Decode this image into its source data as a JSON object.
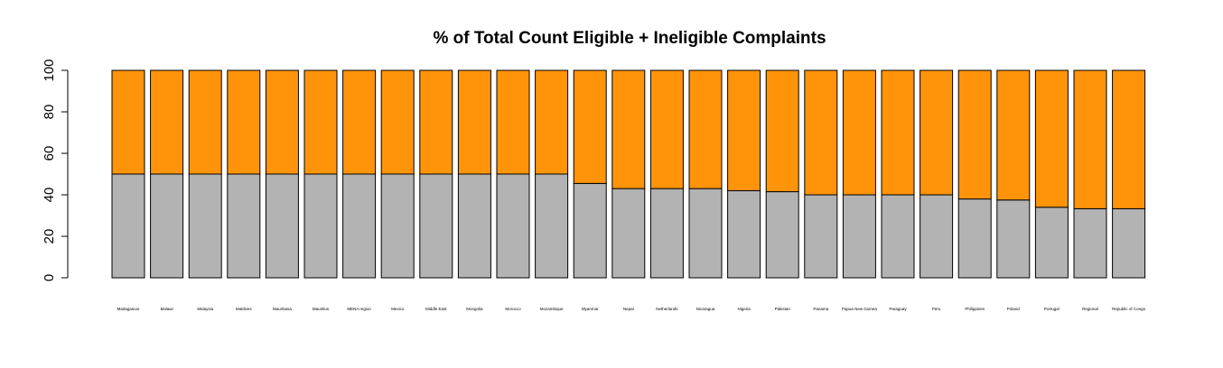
{
  "chart_data": {
    "type": "bar",
    "stacked": true,
    "title": "% of Total Count Eligible + Ineligible Complaints",
    "xlabel": "",
    "ylabel": "",
    "ylim": [
      0,
      100
    ],
    "yticks": [
      0,
      20,
      40,
      60,
      80,
      100
    ],
    "grid": false,
    "legend": "none",
    "categories": [
      "Madagascar",
      "Malawi",
      "Malaysia",
      "Maldives",
      "Mauritania",
      "Mauritius",
      "MENA region",
      "Mexico",
      "Middle East",
      "Mongolia",
      "Morocco",
      "Mozambique",
      "Myanmar",
      "Nepal",
      "Netherlands",
      "Nicaragua",
      "Nigeria",
      "Pakistan",
      "Panama",
      "Papua New Guinea",
      "Paraguay",
      "Peru",
      "Philippines",
      "Poland",
      "Portugal",
      "Regional",
      "Republic of Congo"
    ],
    "series": [
      {
        "color": "#b3b3b3",
        "values": [
          50,
          50,
          50,
          50,
          50,
          50,
          50,
          50,
          50,
          50,
          50,
          50,
          45.5,
          43,
          43,
          43,
          42,
          41.5,
          40,
          40,
          40,
          40,
          38,
          37.5,
          34,
          33.3,
          33.3
        ]
      },
      {
        "color": "#ff940a",
        "values": [
          50,
          50,
          50,
          50,
          50,
          50,
          50,
          50,
          50,
          50,
          50,
          50,
          54.5,
          57,
          57,
          57,
          58,
          58.5,
          60,
          60,
          60,
          60,
          62,
          62.5,
          66,
          66.7,
          66.7
        ]
      }
    ]
  }
}
